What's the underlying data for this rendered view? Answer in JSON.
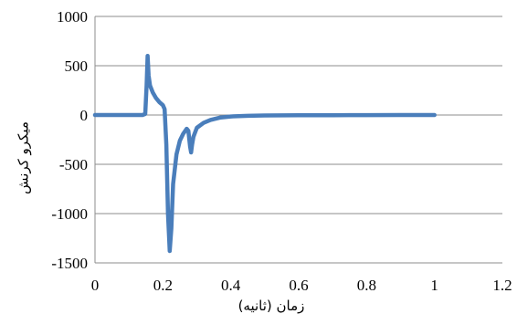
{
  "chart_data": {
    "type": "line",
    "xlabel": "زمان (ثانیه)",
    "ylabel": "میکرو کرنش",
    "xlim": [
      0,
      1.2
    ],
    "ylim": [
      -1500,
      1000
    ],
    "x_ticks": [
      0,
      0.2,
      0.4,
      0.6,
      0.8,
      1,
      1.2
    ],
    "x_tick_labels": [
      "0",
      "0.2",
      "0.4",
      "0.6",
      "0.8",
      "1",
      "1.2"
    ],
    "y_ticks": [
      1000,
      500,
      0,
      -500,
      -1000,
      -1500
    ],
    "y_tick_labels": [
      "1000",
      "500",
      "0",
      "-500",
      "-1000",
      "-1500"
    ],
    "grid": "horizontal",
    "series": [
      {
        "color": "#4a7ebb",
        "x": [
          0,
          0.05,
          0.1,
          0.14,
          0.148,
          0.152,
          0.155,
          0.158,
          0.162,
          0.17,
          0.18,
          0.19,
          0.2,
          0.205,
          0.21,
          0.215,
          0.22,
          0.225,
          0.23,
          0.24,
          0.25,
          0.26,
          0.27,
          0.275,
          0.28,
          0.283,
          0.286,
          0.29,
          0.3,
          0.32,
          0.34,
          0.37,
          0.4,
          0.45,
          0.5,
          0.6,
          0.7,
          0.8,
          0.9,
          1.0
        ],
        "y": [
          0,
          0,
          0,
          0,
          10,
          300,
          600,
          400,
          300,
          230,
          170,
          130,
          100,
          60,
          -300,
          -1000,
          -1380,
          -1150,
          -700,
          -400,
          -260,
          -190,
          -140,
          -160,
          -320,
          -380,
          -300,
          -220,
          -130,
          -80,
          -50,
          -25,
          -15,
          -8,
          -5,
          -3,
          -2,
          -1,
          0,
          0
        ]
      }
    ]
  }
}
